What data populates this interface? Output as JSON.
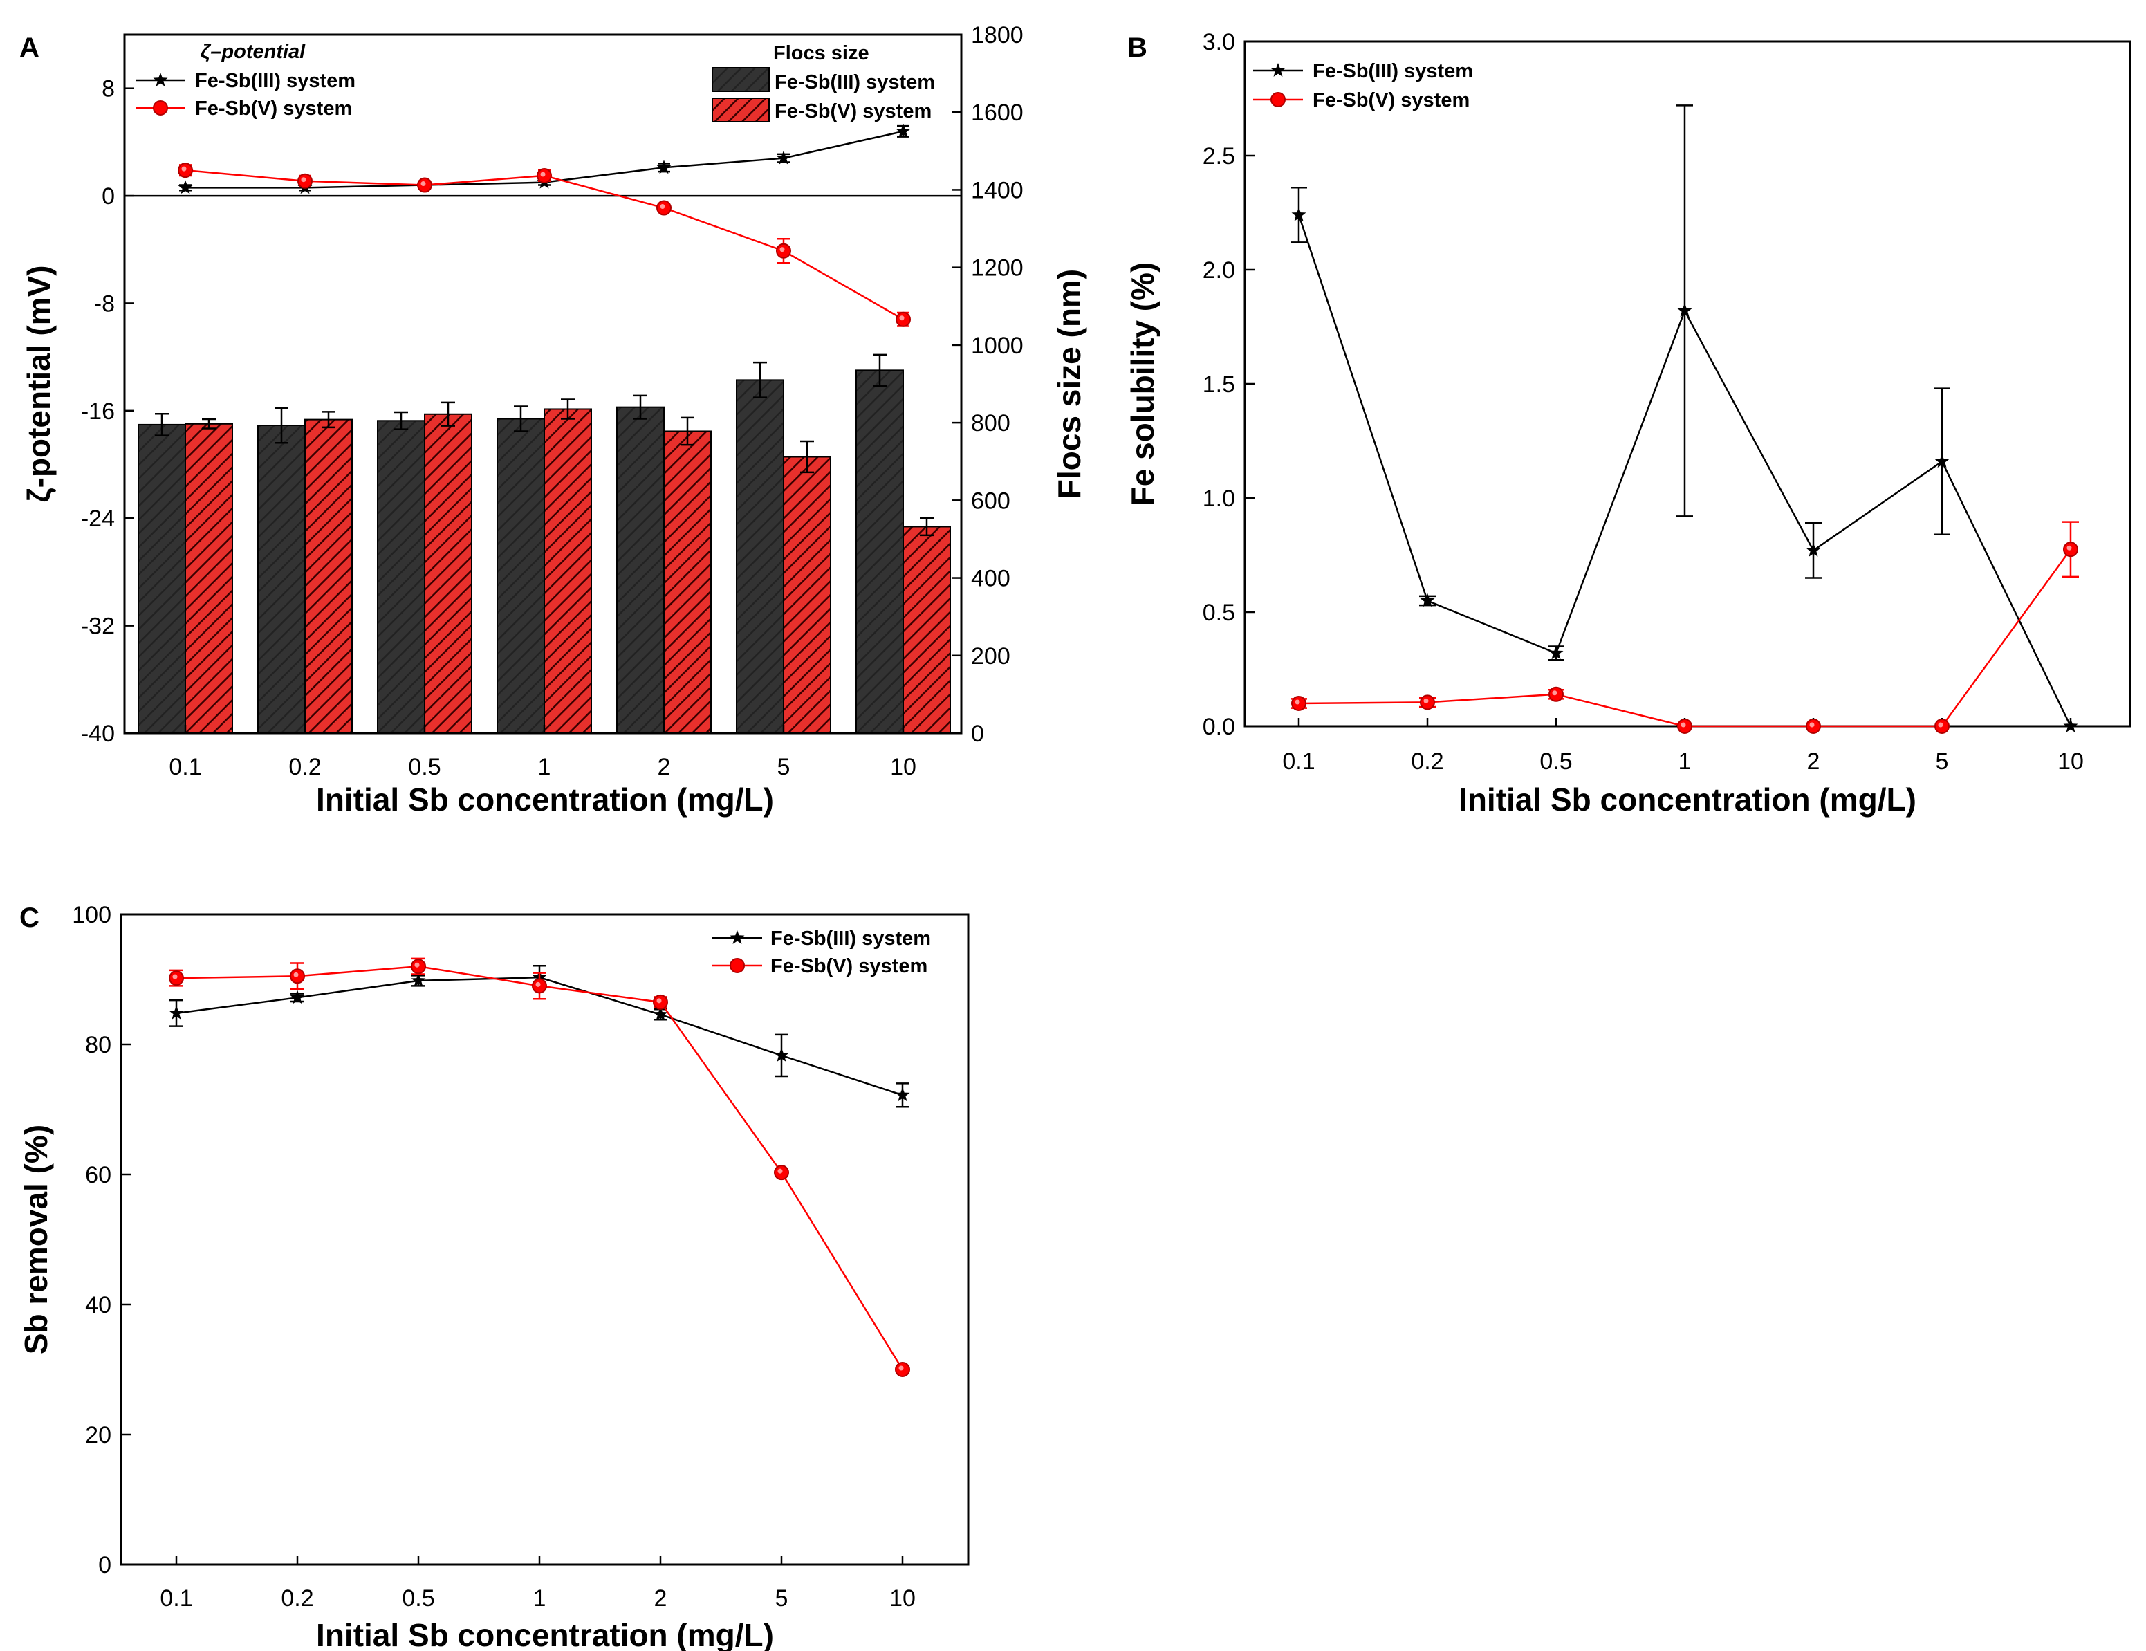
{
  "colors": {
    "black": "#000000",
    "red": "#ff0000",
    "bar_dark": "#333333",
    "bar_red": "#e8302c",
    "hatch": "#3a0000"
  },
  "chart_data": [
    {
      "panel": "A",
      "type": "bar+line",
      "categories": [
        "0.1",
        "0.2",
        "0.5",
        "1",
        "2",
        "5",
        "10"
      ],
      "xlabel": "Initial Sb concentration (mg/L)",
      "ylabel_left": "ζ-potential (mV)",
      "ylabel_right": "Flocs size (nm)",
      "ylim_left": [
        -40,
        12
      ],
      "yticks_left": [
        -40,
        -32,
        -24,
        -16,
        -8,
        0,
        8
      ],
      "ylim_right": [
        0,
        1800
      ],
      "yticks_right": [
        0,
        200,
        400,
        600,
        800,
        1000,
        1200,
        1400,
        1600,
        1800
      ],
      "legend_lines_title": "ζ–potential",
      "legend_bars_title": "Flocs size",
      "line_series": [
        {
          "name": "Fe-Sb(III) system",
          "color": "#000000",
          "marker": "star",
          "values": [
            0.6,
            0.6,
            0.8,
            1.0,
            2.1,
            2.8,
            4.8
          ],
          "errors": [
            0.2,
            0.2,
            0.2,
            0.2,
            0.3,
            0.3,
            0.4
          ]
        },
        {
          "name": "Fe-Sb(V) system",
          "color": "#ff0000",
          "marker": "circle",
          "values": [
            1.9,
            1.1,
            0.8,
            1.5,
            -0.9,
            -4.1,
            -9.2
          ],
          "errors": [
            0.4,
            0.4,
            0.3,
            0.4,
            0.3,
            0.9,
            0.5
          ]
        }
      ],
      "bar_series": [
        {
          "name": "Fe-Sb(III) system",
          "color": "#333333",
          "values": [
            795,
            793,
            805,
            810,
            840,
            910,
            935
          ],
          "errors": [
            28,
            45,
            22,
            32,
            30,
            45,
            40
          ]
        },
        {
          "name": "Fe-Sb(V) system",
          "color": "#e8302c",
          "values": [
            797,
            808,
            822,
            835,
            778,
            712,
            532
          ],
          "errors": [
            12,
            20,
            30,
            25,
            35,
            40,
            22
          ]
        }
      ]
    },
    {
      "panel": "B",
      "type": "line",
      "categories": [
        "0.1",
        "0.2",
        "0.5",
        "1",
        "2",
        "5",
        "10"
      ],
      "xlabel": "Initial Sb concentration (mg/L)",
      "ylabel": "Fe solubility (%)",
      "ylim": [
        0,
        3.0
      ],
      "yticks": [
        "0.0",
        "0.5",
        "1.0",
        "1.5",
        "2.0",
        "2.5",
        "3.0"
      ],
      "series": [
        {
          "name": "Fe-Sb(III) system",
          "color": "#000000",
          "marker": "star",
          "values": [
            2.24,
            0.55,
            0.32,
            1.82,
            0.77,
            1.16,
            0.0
          ],
          "errors": [
            0.12,
            0.02,
            0.03,
            0.9,
            0.12,
            0.32,
            0.0
          ]
        },
        {
          "name": "Fe-Sb(V) system",
          "color": "#ff0000",
          "marker": "circle",
          "values": [
            0.1,
            0.105,
            0.14,
            0.0,
            0.0,
            0.0,
            0.775
          ],
          "errors": [
            0.02,
            0.02,
            0.02,
            0.0,
            0.0,
            0.0,
            0.12
          ]
        }
      ]
    },
    {
      "panel": "C",
      "type": "line",
      "categories": [
        "0.1",
        "0.2",
        "0.5",
        "1",
        "2",
        "5",
        "10"
      ],
      "xlabel": "Initial Sb concentration (mg/L)",
      "ylabel": "Sb removal (%)",
      "ylim": [
        0,
        100
      ],
      "yticks": [
        "0",
        "20",
        "40",
        "60",
        "80",
        "100"
      ],
      "series": [
        {
          "name": "Fe-Sb(III) system",
          "color": "#000000",
          "marker": "star",
          "values": [
            84.8,
            87.2,
            89.8,
            90.3,
            84.6,
            78.3,
            72.2
          ],
          "errors": [
            2.0,
            0.6,
            0.8,
            1.8,
            0.8,
            3.2,
            1.8
          ]
        },
        {
          "name": "Fe-Sb(V) system",
          "color": "#ff0000",
          "marker": "circle",
          "values": [
            90.2,
            90.5,
            92.0,
            89.0,
            86.5,
            60.3,
            30.0
          ],
          "errors": [
            1.2,
            2.0,
            1.2,
            2.0,
            0.8,
            0.5,
            0.5
          ]
        }
      ]
    }
  ]
}
